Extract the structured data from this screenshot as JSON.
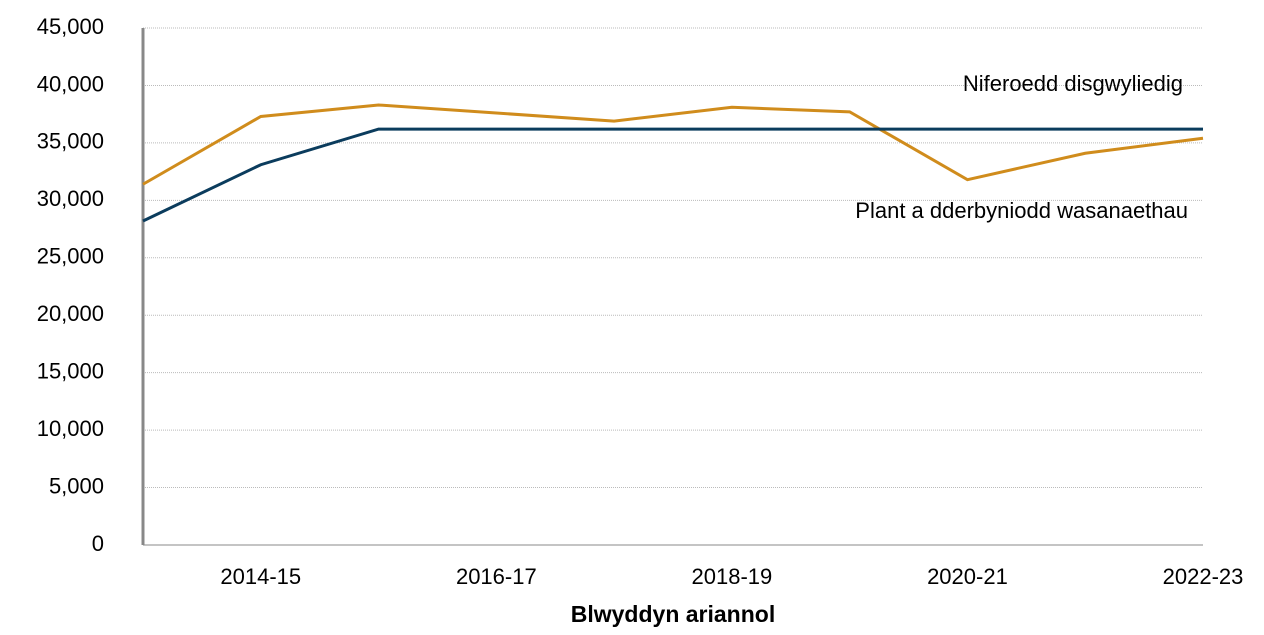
{
  "chart_data": {
    "type": "line",
    "x_label": "Blwyddyn ariannol",
    "categories": [
      null,
      "2014-15",
      null,
      "2016-17",
      null,
      "2018-19",
      null,
      "2020-21",
      null,
      "2022-23"
    ],
    "series": [
      {
        "name": "Plant a dderbyniodd wasanaethau",
        "color": "#d08c1c",
        "values": [
          31400,
          37300,
          38300,
          37600,
          36900,
          38100,
          37700,
          31800,
          34100,
          35400
        ]
      },
      {
        "name": "Niferoedd disgwyliedig",
        "color": "#0b3c5d",
        "values": [
          28200,
          33100,
          36200,
          36200,
          36200,
          36200,
          36200,
          36200,
          36200,
          36200
        ]
      }
    ],
    "ylim": [
      0,
      45000
    ],
    "yticks": [
      0,
      {
        "value": 5000,
        "label": "5,000"
      },
      {
        "value": 10000,
        "label": "10,000"
      },
      {
        "value": 15000,
        "label": "15,000"
      },
      {
        "value": 20000,
        "label": "20,000"
      },
      {
        "value": 25000,
        "label": "25,000"
      },
      {
        "value": 30000,
        "label": "30,000"
      },
      {
        "value": 35000,
        "label": "35,000"
      },
      {
        "value": 40000,
        "label": "40,000"
      },
      {
        "value": 45000,
        "label": "45,000"
      }
    ],
    "grid": true
  }
}
